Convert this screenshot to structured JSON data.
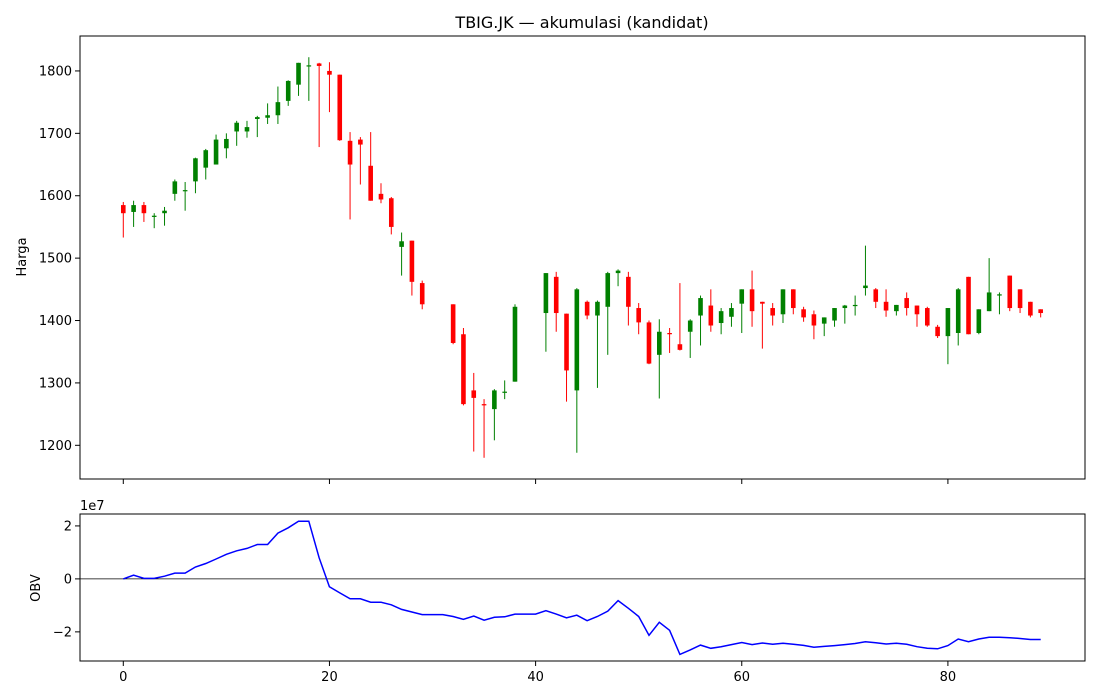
{
  "chart_data": [
    {
      "type": "candlestick",
      "title": "TBIG.JK  —  akumulasi (kandidat)",
      "xlabel": "",
      "ylabel": "Harga",
      "xlim": [
        -4.2,
        93.3
      ],
      "ylim": [
        1146,
        1856
      ],
      "xticks": [
        0,
        20,
        40,
        60,
        80
      ],
      "yticks": [
        1200,
        1300,
        1400,
        1500,
        1600,
        1700,
        1800
      ],
      "xtick_labels_shown": false,
      "grid": false,
      "colors": {
        "up": "#008000",
        "down": "#ff0000"
      },
      "ohlc": [
        [
          0,
          1585,
          1590,
          1533,
          1572
        ],
        [
          1,
          1574,
          1592,
          1550,
          1585
        ],
        [
          2,
          1585,
          1590,
          1558,
          1572
        ],
        [
          3,
          1566,
          1572,
          1548,
          1568
        ],
        [
          4,
          1572,
          1582,
          1552,
          1576
        ],
        [
          5,
          1603,
          1626,
          1592,
          1623
        ],
        [
          6,
          1608,
          1622,
          1576,
          1609
        ],
        [
          7,
          1623,
          1661,
          1604,
          1660
        ],
        [
          8,
          1645,
          1675,
          1626,
          1673
        ],
        [
          9,
          1650,
          1698,
          1650,
          1690
        ],
        [
          10,
          1676,
          1700,
          1660,
          1691
        ],
        [
          11,
          1703,
          1720,
          1680,
          1717
        ],
        [
          12,
          1703,
          1720,
          1693,
          1710
        ],
        [
          13,
          1723,
          1728,
          1694,
          1726
        ],
        [
          14,
          1725,
          1748,
          1715,
          1729
        ],
        [
          15,
          1729,
          1775,
          1715,
          1750
        ],
        [
          16,
          1752,
          1785,
          1744,
          1784
        ],
        [
          17,
          1778,
          1813,
          1760,
          1813
        ],
        [
          18,
          1808,
          1822,
          1752,
          1809
        ],
        [
          19,
          1812,
          1813,
          1678,
          1808
        ],
        [
          20,
          1800,
          1814,
          1734,
          1794
        ],
        [
          21,
          1794,
          1794,
          1688,
          1689
        ],
        [
          22,
          1688,
          1702,
          1562,
          1650
        ],
        [
          23,
          1690,
          1694,
          1618,
          1682
        ],
        [
          24,
          1648,
          1702,
          1592,
          1592
        ],
        [
          25,
          1603,
          1620,
          1588,
          1594
        ],
        [
          26,
          1596,
          1598,
          1538,
          1550
        ],
        [
          27,
          1518,
          1541,
          1472,
          1527
        ],
        [
          28,
          1528,
          1528,
          1440,
          1462
        ],
        [
          29,
          1460,
          1464,
          1418,
          1426
        ],
        [
          32,
          1426,
          1426,
          1362,
          1364
        ],
        [
          33,
          1378,
          1388,
          1264,
          1266
        ],
        [
          34,
          1288,
          1316,
          1190,
          1276
        ],
        [
          35,
          1266,
          1274,
          1180,
          1264
        ],
        [
          36,
          1258,
          1290,
          1208,
          1288
        ],
        [
          37,
          1286,
          1304,
          1274,
          1286
        ],
        [
          38,
          1302,
          1426,
          1302,
          1422
        ],
        [
          41,
          1412,
          1476,
          1350,
          1476
        ],
        [
          42,
          1470,
          1478,
          1382,
          1412
        ],
        [
          43,
          1411,
          1411,
          1270,
          1320
        ],
        [
          44,
          1288,
          1452,
          1188,
          1450
        ],
        [
          45,
          1430,
          1432,
          1402,
          1408
        ],
        [
          46,
          1408,
          1432,
          1292,
          1430
        ],
        [
          47,
          1422,
          1478,
          1345,
          1476
        ],
        [
          48,
          1476,
          1482,
          1455,
          1480
        ],
        [
          49,
          1470,
          1478,
          1392,
          1422
        ],
        [
          50,
          1420,
          1428,
          1378,
          1397
        ],
        [
          51,
          1397,
          1400,
          1330,
          1331
        ],
        [
          52,
          1345,
          1402,
          1275,
          1382
        ],
        [
          53,
          1380,
          1388,
          1348,
          1378
        ],
        [
          54,
          1362,
          1460,
          1352,
          1353
        ],
        [
          55,
          1382,
          1402,
          1340,
          1400
        ],
        [
          56,
          1408,
          1440,
          1360,
          1436
        ],
        [
          57,
          1424,
          1450,
          1382,
          1392
        ],
        [
          58,
          1396,
          1420,
          1378,
          1415
        ],
        [
          59,
          1406,
          1428,
          1390,
          1420
        ],
        [
          60,
          1427,
          1450,
          1380,
          1450
        ],
        [
          61,
          1450,
          1480,
          1390,
          1415
        ],
        [
          62,
          1430,
          1430,
          1355,
          1427
        ],
        [
          63,
          1420,
          1428,
          1392,
          1408
        ],
        [
          64,
          1410,
          1450,
          1396,
          1450
        ],
        [
          65,
          1450,
          1450,
          1410,
          1420
        ],
        [
          66,
          1418,
          1422,
          1398,
          1405
        ],
        [
          67,
          1410,
          1416,
          1370,
          1392
        ],
        [
          68,
          1395,
          1405,
          1375,
          1405
        ],
        [
          69,
          1400,
          1420,
          1390,
          1420
        ],
        [
          70,
          1420,
          1425,
          1395,
          1424
        ],
        [
          71,
          1425,
          1440,
          1408,
          1425
        ],
        [
          72,
          1452,
          1520,
          1440,
          1456
        ],
        [
          73,
          1450,
          1452,
          1420,
          1430
        ],
        [
          74,
          1430,
          1450,
          1406,
          1416
        ],
        [
          75,
          1415,
          1425,
          1408,
          1425
        ],
        [
          76,
          1436,
          1445,
          1408,
          1420
        ],
        [
          77,
          1424,
          1424,
          1390,
          1410
        ],
        [
          78,
          1420,
          1422,
          1390,
          1392
        ],
        [
          79,
          1390,
          1393,
          1372,
          1375
        ],
        [
          80,
          1375,
          1420,
          1330,
          1420
        ],
        [
          81,
          1380,
          1452,
          1360,
          1450
        ],
        [
          82,
          1470,
          1470,
          1378,
          1378
        ],
        [
          83,
          1380,
          1418,
          1378,
          1418
        ],
        [
          84,
          1415,
          1500,
          1415,
          1445
        ],
        [
          85,
          1440,
          1445,
          1410,
          1442
        ],
        [
          86,
          1472,
          1472,
          1415,
          1420
        ],
        [
          87,
          1450,
          1450,
          1412,
          1420
        ],
        [
          88,
          1430,
          1430,
          1405,
          1408
        ],
        [
          89,
          1418,
          1418,
          1405,
          1412
        ]
      ]
    },
    {
      "type": "line",
      "title": "",
      "xlabel": "",
      "ylabel": "OBV",
      "offset_label": "1e7",
      "xlim": [
        -4.2,
        93.3
      ],
      "ylim": [
        -3.1,
        2.45
      ],
      "xticks": [
        0,
        20,
        40,
        60,
        80
      ],
      "xtick_labels": [
        "0",
        "20",
        "40",
        "60",
        "80"
      ],
      "yticks": [
        -2,
        0,
        2
      ],
      "ytick_labels": [
        "−2",
        "0",
        "2"
      ],
      "zero_line": true,
      "series": [
        {
          "color": "#0000ff",
          "x": [
            0,
            1,
            2,
            3,
            4,
            5,
            6,
            7,
            8,
            9,
            10,
            11,
            12,
            13,
            14,
            15,
            16,
            17,
            18,
            19,
            20,
            21,
            22,
            23,
            24,
            25,
            26,
            27,
            28,
            29,
            30,
            31,
            32,
            33,
            34,
            35,
            36,
            37,
            38,
            39,
            40,
            41,
            42,
            43,
            44,
            45,
            46,
            47,
            48,
            49,
            50,
            51,
            52,
            53,
            54,
            55,
            56,
            57,
            58,
            59,
            60,
            61,
            62,
            63,
            64,
            65,
            66,
            67,
            68,
            69,
            70,
            71,
            72,
            73,
            74,
            75,
            76,
            77,
            78,
            79,
            80,
            81,
            82,
            83,
            84,
            85,
            86,
            87,
            88,
            89
          ],
          "y": [
            0.0,
            0.14,
            0.02,
            0.02,
            0.1,
            0.22,
            0.22,
            0.45,
            0.58,
            0.75,
            0.93,
            1.06,
            1.15,
            1.3,
            1.3,
            1.73,
            1.93,
            2.18,
            2.18,
            0.8,
            -0.3,
            -0.53,
            -0.75,
            -0.75,
            -0.88,
            -0.88,
            -0.98,
            -1.15,
            -1.25,
            -1.35,
            -1.35,
            -1.35,
            -1.42,
            -1.53,
            -1.4,
            -1.56,
            -1.45,
            -1.43,
            -1.33,
            -1.33,
            -1.33,
            -1.2,
            -1.33,
            -1.47,
            -1.37,
            -1.58,
            -1.42,
            -1.22,
            -0.82,
            -1.11,
            -1.42,
            -2.13,
            -1.64,
            -1.94,
            -2.85,
            -2.68,
            -2.5,
            -2.62,
            -2.56,
            -2.48,
            -2.4,
            -2.48,
            -2.42,
            -2.47,
            -2.43,
            -2.47,
            -2.51,
            -2.58,
            -2.55,
            -2.52,
            -2.48,
            -2.44,
            -2.37,
            -2.41,
            -2.46,
            -2.43,
            -2.47,
            -2.56,
            -2.62,
            -2.64,
            -2.52,
            -2.27,
            -2.37,
            -2.27,
            -2.2,
            -2.2,
            -2.22,
            -2.25,
            -2.29,
            -2.29
          ]
        }
      ]
    }
  ]
}
